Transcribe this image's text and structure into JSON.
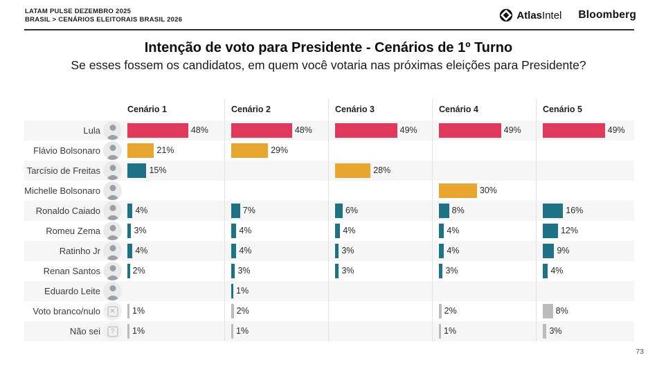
{
  "header": {
    "line1": "LATAM PULSE DEZEMBRO 2025",
    "line2": "BRASIL > CENÁRIOS ELEITORAIS BRASIL 2026",
    "brand_atlas_bold": "Atlas",
    "brand_atlas_light": "Intel",
    "brand_bloomberg": "Bloomberg"
  },
  "title": "Intenção de voto para Presidente - Cenários de 1º Turno",
  "subtitle": "Se esses fossem os candidatos, em quem você votaria nas próximas eleições para Presidente?",
  "page_number": "73",
  "icons": {
    "blank_vote_glyph": "✕",
    "dont_know_glyph": "?"
  },
  "chart_data": {
    "type": "bar",
    "title": "Intenção de voto para Presidente - Cenários de 1º Turno",
    "subtitle": "Se esses fossem os candidatos, em quem você votaria nas próximas eleições para Presidente?",
    "value_suffix": "%",
    "orientation": "horizontal",
    "scenarios": [
      "Cenário 1",
      "Cenário 2",
      "Cenário 3",
      "Cenário 4",
      "Cenário 5"
    ],
    "palette": {
      "crimson": "#E1395B",
      "amber": "#E8A62E",
      "teal": "#1D7385",
      "gray": "#BBBBBB"
    },
    "rows": [
      {
        "label": "Lula",
        "icon": "person",
        "values": [
          48,
          48,
          49,
          49,
          49
        ],
        "colors": [
          "crimson",
          "crimson",
          "crimson",
          "crimson",
          "crimson"
        ]
      },
      {
        "label": "Flávio Bolsonaro",
        "icon": "person",
        "values": [
          21,
          29,
          null,
          null,
          null
        ],
        "colors": [
          "amber",
          "amber",
          null,
          null,
          null
        ]
      },
      {
        "label": "Tarcísio de Freitas",
        "icon": "person",
        "values": [
          15,
          null,
          28,
          null,
          null
        ],
        "colors": [
          "teal",
          null,
          "amber",
          null,
          null
        ]
      },
      {
        "label": "Michelle Bolsonaro",
        "icon": "person",
        "values": [
          null,
          null,
          null,
          30,
          null
        ],
        "colors": [
          null,
          null,
          null,
          "amber",
          null
        ]
      },
      {
        "label": "Ronaldo Caiado",
        "icon": "person",
        "values": [
          4,
          7,
          6,
          8,
          16
        ],
        "colors": [
          "teal",
          "teal",
          "teal",
          "teal",
          "teal"
        ]
      },
      {
        "label": "Romeu Zema",
        "icon": "person",
        "values": [
          3,
          4,
          4,
          4,
          12
        ],
        "colors": [
          "teal",
          "teal",
          "teal",
          "teal",
          "teal"
        ]
      },
      {
        "label": "Ratinho Jr",
        "icon": "person",
        "values": [
          4,
          4,
          3,
          4,
          9
        ],
        "colors": [
          "teal",
          "teal",
          "teal",
          "teal",
          "teal"
        ]
      },
      {
        "label": "Renan Santos",
        "icon": "person",
        "values": [
          2,
          3,
          3,
          3,
          4
        ],
        "colors": [
          "teal",
          "teal",
          "teal",
          "teal",
          "teal"
        ]
      },
      {
        "label": "Eduardo Leite",
        "icon": "person",
        "values": [
          null,
          1,
          null,
          null,
          null
        ],
        "colors": [
          null,
          "teal",
          null,
          null,
          null
        ]
      },
      {
        "label": "Voto branco/nulo",
        "icon": "blank-vote",
        "values": [
          1,
          2,
          null,
          2,
          8
        ],
        "colors": [
          "gray",
          "gray",
          null,
          "gray",
          "gray"
        ]
      },
      {
        "label": "Não sei",
        "icon": "dont-know",
        "values": [
          1,
          1,
          null,
          1,
          3
        ],
        "colors": [
          "gray",
          "gray",
          null,
          "gray",
          "gray"
        ]
      }
    ]
  }
}
